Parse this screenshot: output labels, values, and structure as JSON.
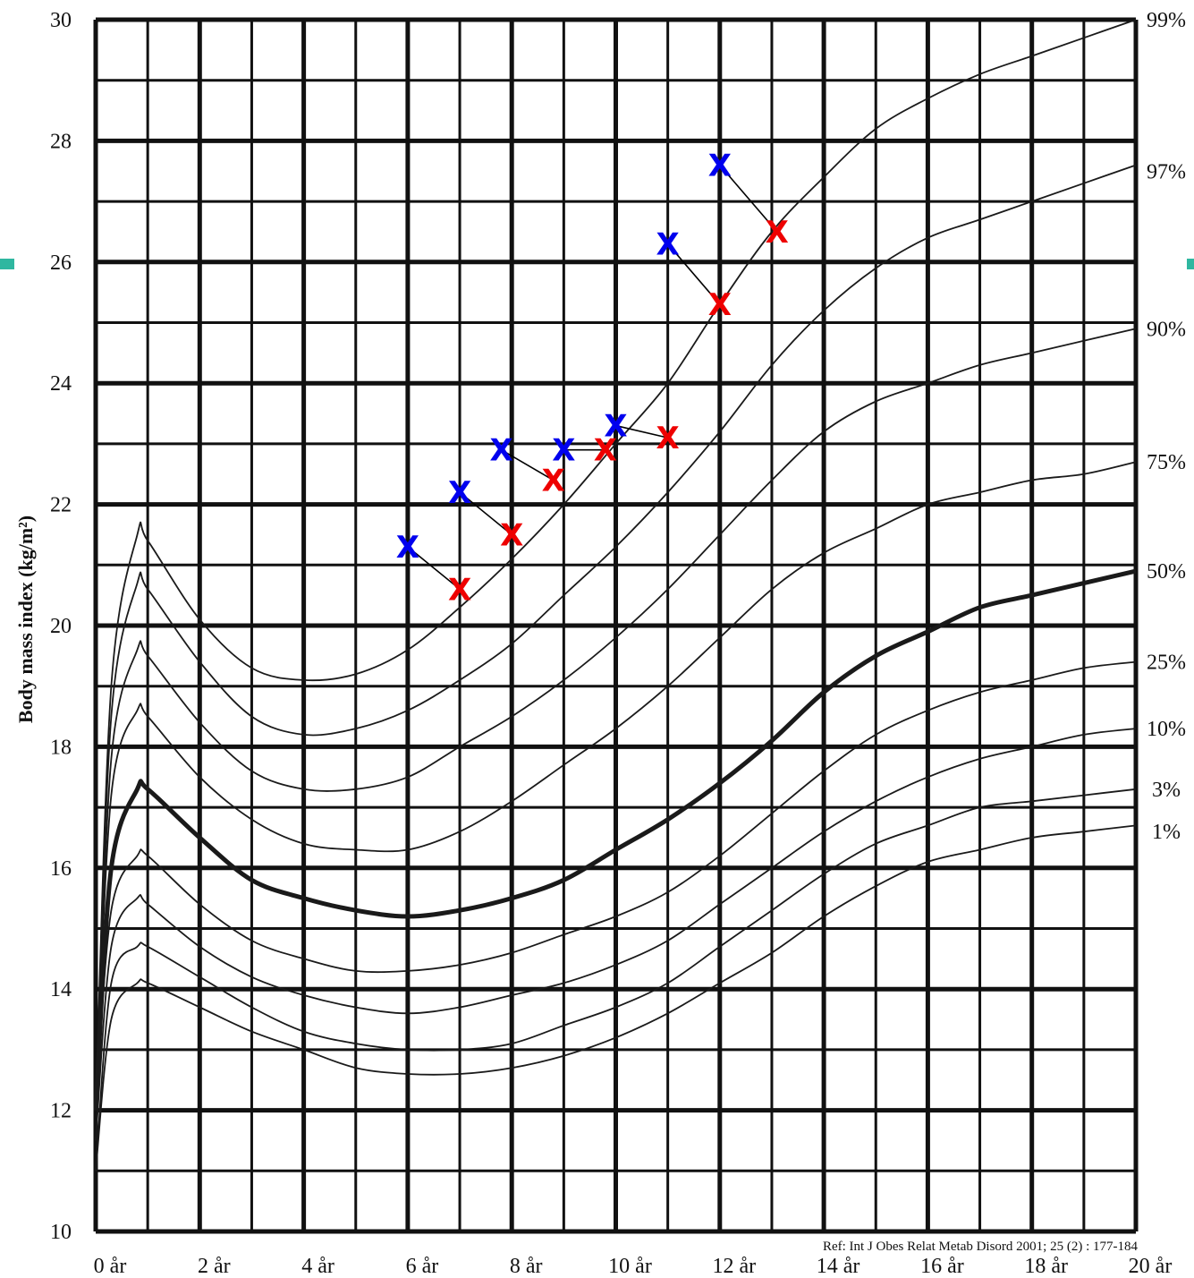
{
  "chart_data": {
    "type": "line",
    "ylabel": "Body mass index (kg/m²)",
    "xlabel": "",
    "xlim": [
      0,
      20
    ],
    "ylim": [
      10,
      30
    ],
    "x_ticks": [
      "0 år",
      "2 år",
      "4 år",
      "6 år",
      "8 år",
      "10 år",
      "12 år",
      "14 år",
      "16 år",
      "18 år",
      "20 år"
    ],
    "y_ticks": [
      "10",
      "12",
      "14",
      "16",
      "18",
      "20",
      "22",
      "24",
      "26",
      "28",
      "30"
    ],
    "reference": "Ref: Int J Obes Relat Metab Disord 2001; 25 (2) : 177-184",
    "grid": true,
    "colors": {
      "series_a": "#0000ee",
      "series_b": "#ee0000",
      "grid": "#111111"
    },
    "percentile_curves": [
      {
        "name": "99%",
        "x": [
          0,
          0.3,
          0.8,
          1,
          2,
          3,
          4,
          5,
          6,
          7,
          8,
          9,
          10,
          11,
          12,
          13,
          14,
          15,
          16,
          17,
          18,
          19,
          20
        ],
        "y": [
          12,
          19,
          21.5,
          21.4,
          20.1,
          19.3,
          19.1,
          19.2,
          19.6,
          20.3,
          21.1,
          22,
          23,
          24,
          25.3,
          26.5,
          27.4,
          28.2,
          28.7,
          29.1,
          29.4,
          29.7,
          30
        ]
      },
      {
        "name": "97%",
        "x": [
          0,
          0.3,
          0.8,
          1,
          2,
          3,
          4,
          5,
          6,
          7,
          8,
          9,
          10,
          11,
          12,
          13,
          14,
          15,
          16,
          17,
          18,
          19,
          20
        ],
        "y": [
          12,
          18.5,
          20.7,
          20.6,
          19.4,
          18.5,
          18.2,
          18.3,
          18.6,
          19.1,
          19.7,
          20.5,
          21.3,
          22.2,
          23.2,
          24.3,
          25.2,
          25.9,
          26.4,
          26.7,
          27,
          27.3,
          27.6
        ]
      },
      {
        "name": "90%",
        "x": [
          0,
          0.3,
          0.8,
          1,
          2,
          3,
          4,
          5,
          6,
          7,
          8,
          9,
          10,
          11,
          12,
          13,
          14,
          15,
          16,
          17,
          18,
          19,
          20
        ],
        "y": [
          12,
          17.8,
          19.6,
          19.5,
          18.4,
          17.6,
          17.3,
          17.3,
          17.5,
          18,
          18.5,
          19.1,
          19.8,
          20.6,
          21.5,
          22.4,
          23.2,
          23.7,
          24,
          24.3,
          24.5,
          24.7,
          24.9
        ]
      },
      {
        "name": "75%",
        "x": [
          0,
          0.3,
          0.8,
          1,
          2,
          3,
          4,
          5,
          6,
          7,
          8,
          9,
          10,
          11,
          12,
          13,
          14,
          15,
          16,
          17,
          18,
          19,
          20
        ],
        "y": [
          12,
          17.2,
          18.6,
          18.5,
          17.5,
          16.8,
          16.4,
          16.3,
          16.3,
          16.6,
          17.1,
          17.7,
          18.3,
          19,
          19.8,
          20.6,
          21.2,
          21.6,
          22,
          22.2,
          22.4,
          22.5,
          22.7
        ]
      },
      {
        "name": "50%",
        "x": [
          0,
          0.3,
          0.8,
          1,
          2,
          3,
          4,
          5,
          6,
          7,
          8,
          9,
          10,
          11,
          12,
          13,
          14,
          15,
          16,
          17,
          18,
          19,
          20
        ],
        "y": [
          12,
          16,
          17.3,
          17.3,
          16.5,
          15.8,
          15.5,
          15.3,
          15.2,
          15.3,
          15.5,
          15.8,
          16.3,
          16.8,
          17.4,
          18.1,
          18.9,
          19.5,
          19.9,
          20.3,
          20.5,
          20.7,
          20.9
        ]
      },
      {
        "name": "25%",
        "x": [
          0,
          0.3,
          0.8,
          1,
          2,
          3,
          4,
          5,
          6,
          7,
          8,
          9,
          10,
          11,
          12,
          13,
          14,
          15,
          16,
          17,
          18,
          19,
          20
        ],
        "y": [
          12,
          15.3,
          16.2,
          16.2,
          15.4,
          14.8,
          14.5,
          14.3,
          14.3,
          14.4,
          14.6,
          14.9,
          15.2,
          15.6,
          16.2,
          16.9,
          17.6,
          18.2,
          18.6,
          18.9,
          19.1,
          19.3,
          19.4
        ]
      },
      {
        "name": "10%",
        "x": [
          0,
          0.3,
          0.8,
          1,
          2,
          3,
          4,
          5,
          6,
          7,
          8,
          9,
          10,
          11,
          12,
          13,
          14,
          15,
          16,
          17,
          18,
          19,
          20
        ],
        "y": [
          11.5,
          14.7,
          15.5,
          15.4,
          14.7,
          14.2,
          13.9,
          13.7,
          13.6,
          13.7,
          13.9,
          14.1,
          14.4,
          14.8,
          15.4,
          16,
          16.6,
          17.1,
          17.5,
          17.8,
          18,
          18.2,
          18.3
        ]
      },
      {
        "name": "3%",
        "x": [
          0,
          0.3,
          0.8,
          1,
          2,
          3,
          4,
          5,
          6,
          7,
          8,
          9,
          10,
          11,
          12,
          13,
          14,
          15,
          16,
          17,
          18,
          19,
          20
        ],
        "y": [
          11,
          14.1,
          14.7,
          14.7,
          14.2,
          13.7,
          13.3,
          13.1,
          13,
          13,
          13.1,
          13.4,
          13.7,
          14.1,
          14.7,
          15.3,
          15.9,
          16.4,
          16.7,
          17,
          17.1,
          17.2,
          17.3
        ]
      },
      {
        "name": "1%",
        "x": [
          0,
          0.3,
          0.8,
          1,
          2,
          3,
          4,
          5,
          6,
          7,
          8,
          9,
          10,
          11,
          12,
          13,
          14,
          15,
          16,
          17,
          18,
          19,
          20
        ],
        "y": [
          11,
          13.5,
          14.1,
          14.1,
          13.7,
          13.3,
          13,
          12.7,
          12.6,
          12.6,
          12.7,
          12.9,
          13.2,
          13.6,
          14.1,
          14.6,
          15.2,
          15.7,
          16.1,
          16.3,
          16.5,
          16.6,
          16.7
        ]
      }
    ],
    "percentile_labels": [
      {
        "text": "99%",
        "y": 30
      },
      {
        "text": "97%",
        "y": 27.5
      },
      {
        "text": "90%",
        "y": 24.9
      },
      {
        "text": "75%",
        "y": 22.7
      },
      {
        "text": "50%",
        "y": 20.9
      },
      {
        "text": "25%",
        "y": 19.4
      },
      {
        "text": "10%",
        "y": 18.3
      },
      {
        "text": "3%",
        "y": 17.3
      },
      {
        "text": "1%",
        "y": 16.6
      }
    ],
    "marker_label": "X",
    "pairs": [
      {
        "a": {
          "x": 6.0,
          "y": 21.3
        },
        "b": {
          "x": 7.0,
          "y": 20.6
        }
      },
      {
        "a": {
          "x": 7.0,
          "y": 22.2
        },
        "b": {
          "x": 8.0,
          "y": 21.5
        }
      },
      {
        "a": {
          "x": 7.8,
          "y": 22.9
        },
        "b": {
          "x": 8.8,
          "y": 22.4
        }
      },
      {
        "a": {
          "x": 9.0,
          "y": 22.9
        },
        "b": {
          "x": 9.8,
          "y": 22.9
        }
      },
      {
        "a": {
          "x": 10.0,
          "y": 23.3
        },
        "b": {
          "x": 11.0,
          "y": 23.1
        }
      },
      {
        "a": {
          "x": 11.0,
          "y": 26.3
        },
        "b": {
          "x": 12.0,
          "y": 25.3
        }
      },
      {
        "a": {
          "x": 12.0,
          "y": 27.6
        },
        "b": {
          "x": 13.1,
          "y": 26.5
        }
      }
    ]
  }
}
